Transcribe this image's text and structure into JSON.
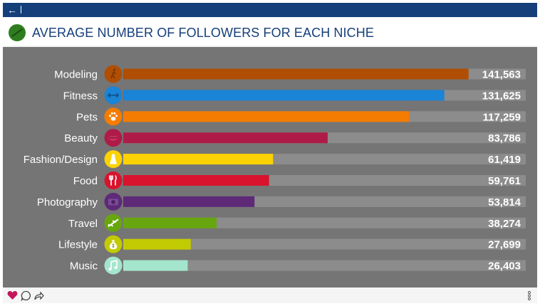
{
  "toolbar": {
    "back_icon": "arrow-left-icon"
  },
  "title": "AVERAGE NUMBER OF FOLLOWERS FOR EACH NICHE",
  "colors": {
    "header": "#153f7a",
    "panel": "#757575",
    "track": "#8c8c8c"
  },
  "chart_data": {
    "type": "bar",
    "orientation": "horizontal",
    "categories": [
      "Modeling",
      "Fitness",
      "Pets",
      "Beauty",
      "Fashion/Design",
      "Food",
      "Photography",
      "Travel",
      "Lifestyle",
      "Music"
    ],
    "values": [
      141563,
      131625,
      117259,
      83786,
      61419,
      59761,
      53814,
      38274,
      27699,
      26403
    ],
    "value_labels": [
      "141,563",
      "131,625",
      "117,259",
      "83,786",
      "61,419",
      "59,761",
      "53,814",
      "38,274",
      "27,699",
      "26,403"
    ],
    "colors": [
      "#b04e04",
      "#1a84d6",
      "#f47c00",
      "#ae1b48",
      "#fbd203",
      "#d9132d",
      "#5e2a78",
      "#67a60e",
      "#c2ca02",
      "#a4e6cd"
    ],
    "icons": [
      "walking-person-icon",
      "dumbbell-icon",
      "paw-icon",
      "lips-icon",
      "dress-icon",
      "fork-knife-icon",
      "camera-icon",
      "airplane-icon",
      "money-bag-icon",
      "music-note-icon"
    ],
    "xlim": [
      0,
      165000
    ],
    "grid": false,
    "legend": false
  },
  "footer": {
    "icons": [
      "heart-icon",
      "comment-icon",
      "share-icon",
      "more-icon"
    ]
  }
}
